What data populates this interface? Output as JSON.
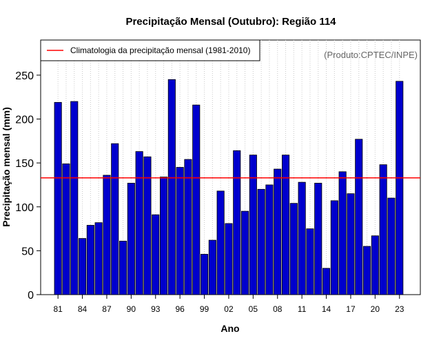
{
  "chart_data": {
    "type": "bar",
    "title": "Precipitação Mensal (Outubro): Região 114",
    "xlabel": "Ano",
    "ylabel": "Precipitação mensal (mm)",
    "ylim": [
      0,
      290
    ],
    "yticks": [
      0,
      50,
      100,
      150,
      200,
      250
    ],
    "xtick_labels": [
      "81",
      "84",
      "87",
      "90",
      "93",
      "96",
      "99",
      "02",
      "05",
      "08",
      "11",
      "14",
      "17",
      "20",
      "23"
    ],
    "grid": "vertical dotted",
    "legend": {
      "label": "Climatologia da precipitação mensal (1981-2010)",
      "position": "top-left"
    },
    "annotation": "(Produto:CPTEC/INPE)",
    "climatology": 133,
    "bar_color": "#0000CD",
    "line_color": "#FF0000",
    "categories": [
      "1981",
      "1982",
      "1983",
      "1984",
      "1985",
      "1986",
      "1987",
      "1988",
      "1989",
      "1990",
      "1991",
      "1992",
      "1993",
      "1994",
      "1995",
      "1996",
      "1997",
      "1998",
      "1999",
      "2000",
      "2001",
      "2002",
      "2003",
      "2004",
      "2005",
      "2006",
      "2007",
      "2008",
      "2009",
      "2010",
      "2011",
      "2012",
      "2013",
      "2014",
      "2015",
      "2016",
      "2017",
      "2018",
      "2019",
      "2020",
      "2021",
      "2022",
      "2023"
    ],
    "values": [
      219,
      149,
      220,
      64,
      79,
      82,
      136,
      172,
      61,
      127,
      163,
      157,
      91,
      134,
      245,
      145,
      154,
      216,
      46,
      62,
      118,
      81,
      164,
      95,
      159,
      120,
      125,
      143,
      159,
      104,
      128,
      75,
      127,
      30,
      107,
      140,
      115,
      177,
      55,
      67,
      148,
      110,
      243
    ]
  }
}
